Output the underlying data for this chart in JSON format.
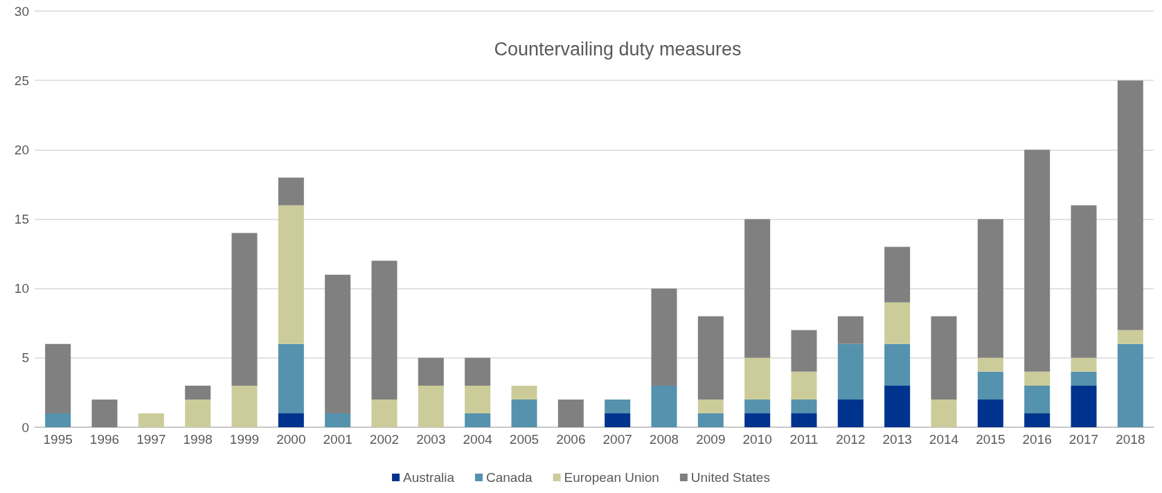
{
  "chart_data": {
    "type": "bar",
    "title": "Countervailing duty measures",
    "stacked": true,
    "grid": "y",
    "legend": "bottom",
    "categories": [
      "1995",
      "1996",
      "1997",
      "1998",
      "1999",
      "2000",
      "2001",
      "2002",
      "2003",
      "2004",
      "2005",
      "2006",
      "2007",
      "2008",
      "2009",
      "2010",
      "2011",
      "2012",
      "2013",
      "2014",
      "2015",
      "2016",
      "2017",
      "2018"
    ],
    "series": [
      {
        "name": "Australia",
        "color": "#00338d",
        "values": [
          null,
          null,
          null,
          null,
          null,
          1,
          null,
          null,
          null,
          null,
          null,
          null,
          1,
          null,
          null,
          1,
          1,
          2,
          3,
          null,
          2,
          1,
          3,
          null
        ]
      },
      {
        "name": "Canada",
        "color": "#5592ae",
        "values": [
          1,
          null,
          null,
          null,
          null,
          5,
          1,
          null,
          null,
          1,
          2,
          null,
          1,
          3,
          1,
          1,
          1,
          4,
          3,
          null,
          2,
          2,
          1,
          6
        ]
      },
      {
        "name": "European Union",
        "color": "#cccc9a",
        "values": [
          null,
          null,
          1,
          2,
          3,
          10,
          null,
          2,
          3,
          2,
          1,
          null,
          null,
          null,
          1,
          3,
          2,
          null,
          3,
          2,
          1,
          1,
          1,
          1
        ]
      },
      {
        "name": "United States",
        "color": "#808080",
        "values": [
          5,
          2,
          null,
          1,
          11,
          2,
          10,
          10,
          2,
          2,
          null,
          2,
          null,
          7,
          6,
          10,
          3,
          2,
          4,
          6,
          10,
          16,
          11,
          18
        ]
      }
    ],
    "ylim": [
      0,
      30
    ],
    "yticks": [
      0,
      5,
      10,
      15,
      20,
      25,
      30
    ]
  }
}
